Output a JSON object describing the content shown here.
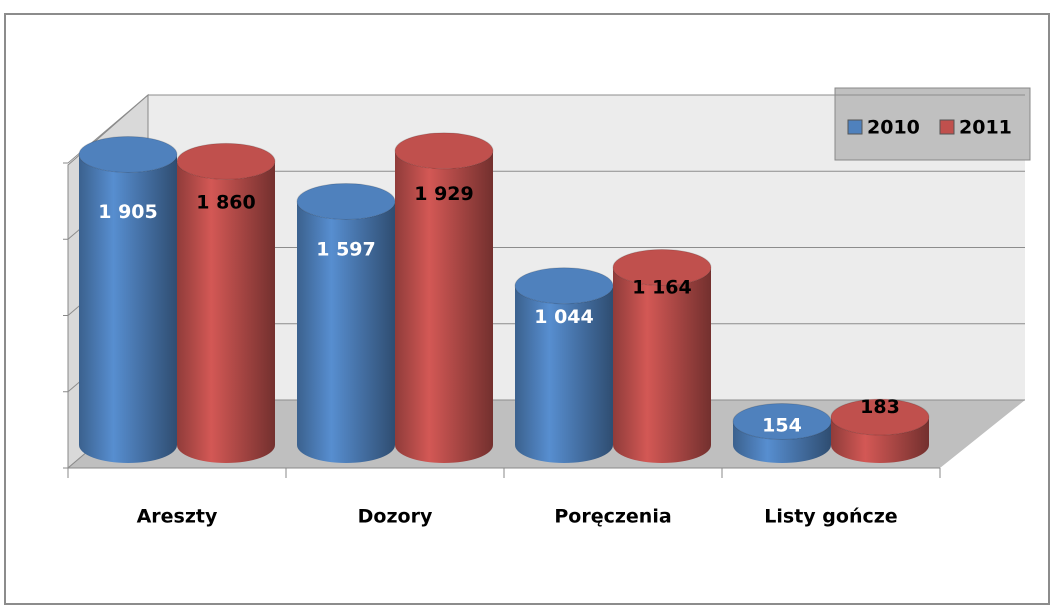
{
  "chart_data": {
    "type": "bar3d",
    "categories": [
      "Areszty",
      "Dozory",
      "Poręczenia",
      "Listy gończe"
    ],
    "series": [
      {
        "name": "2010",
        "color": "#4f81bd",
        "values": [
          1905,
          1597,
          1044,
          154
        ],
        "value_labels": [
          "1 905",
          "1 597",
          "1 044",
          "154"
        ]
      },
      {
        "name": "2011",
        "color": "#c0504d",
        "values": [
          1860,
          1929,
          1164,
          183
        ],
        "value_labels": [
          "1 860",
          "1 929",
          "1 164",
          "183"
        ]
      }
    ],
    "ylim": [
      0,
      2000
    ],
    "yticks": [
      0,
      500,
      1000,
      1500,
      2000
    ],
    "grid": true,
    "legend": "upper right"
  }
}
